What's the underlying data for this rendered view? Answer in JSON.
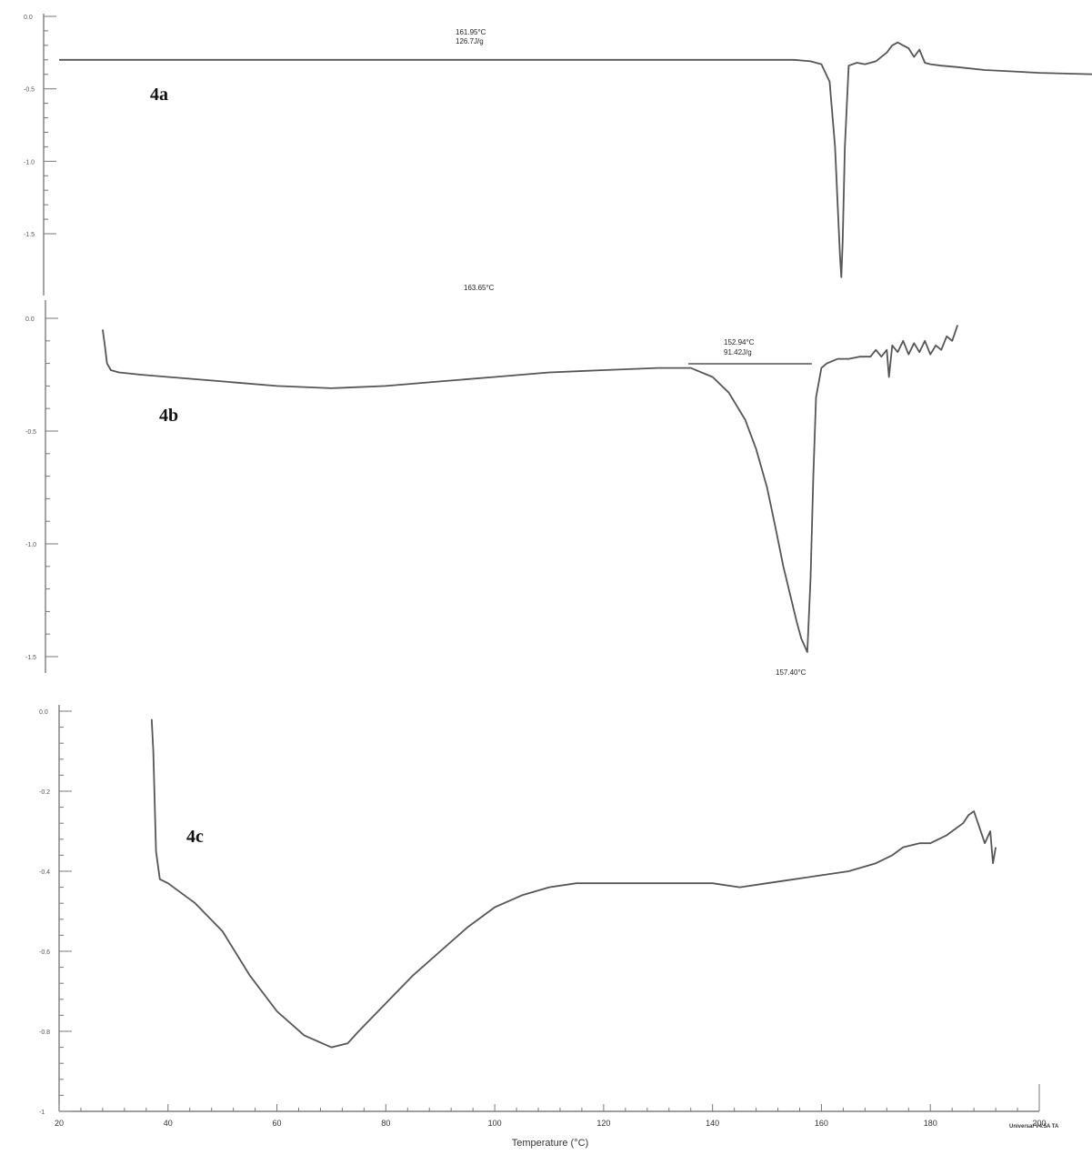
{
  "chart_data": [
    {
      "type": "line",
      "panel_label": "4a",
      "y_tick_labels": [
        "0.0",
        "-0.5",
        "-1.0",
        "-1.5"
      ],
      "ylim": [
        -1.8,
        0.1
      ],
      "annotations": {
        "onset": "161.95°C",
        "enthalpy": "126.7J/g",
        "peak": "163.65°C"
      },
      "series": [
        {
          "x": [
            20,
            60,
            100,
            130,
            135,
            155,
            158,
            160,
            161.5,
            162.5,
            163.1,
            163.4,
            163.65,
            163.9,
            164.3,
            165,
            166.5,
            168,
            170,
            172,
            173,
            174,
            175,
            176,
            177,
            178,
            179,
            180,
            182,
            185,
            190,
            195,
            200,
            210,
            216
          ],
          "y": [
            -0.3,
            -0.3,
            -0.3,
            -0.3,
            -0.3,
            -0.3,
            -0.31,
            -0.33,
            -0.45,
            -0.9,
            -1.4,
            -1.65,
            -1.8,
            -1.55,
            -0.9,
            -0.34,
            -0.32,
            -0.33,
            -0.31,
            -0.25,
            -0.2,
            -0.18,
            -0.2,
            -0.22,
            -0.28,
            -0.23,
            -0.32,
            -0.33,
            -0.34,
            -0.35,
            -0.37,
            -0.38,
            -0.39,
            -0.4,
            -0.41
          ]
        }
      ]
    },
    {
      "type": "line",
      "panel_label": "4b",
      "y_tick_labels": [
        "0.0",
        "-0.5",
        "-1.0",
        "-1.5"
      ],
      "ylim": [
        -1.55,
        0.05
      ],
      "annotations": {
        "onset": "152.94°C",
        "enthalpy": "91.42J/g",
        "peak": "157.40°C"
      },
      "series": [
        {
          "x": [
            28,
            28.4,
            28.8,
            29.5,
            31,
            35,
            40,
            50,
            60,
            70,
            80,
            90,
            100,
            110,
            120,
            130,
            136,
            140,
            143,
            146,
            148,
            150,
            151.5,
            153,
            154.5,
            155.5,
            156.3,
            157.4,
            158,
            158.5,
            159,
            160,
            161,
            163,
            165,
            167,
            169,
            170,
            171,
            172,
            172.4,
            173,
            174,
            175,
            176,
            177,
            178,
            179,
            180,
            181,
            182,
            183,
            184,
            185
          ],
          "y": [
            -0.05,
            -0.12,
            -0.2,
            -0.23,
            -0.24,
            -0.25,
            -0.26,
            -0.28,
            -0.3,
            -0.31,
            -0.3,
            -0.28,
            -0.26,
            -0.24,
            -0.23,
            -0.22,
            -0.22,
            -0.26,
            -0.33,
            -0.45,
            -0.58,
            -0.75,
            -0.92,
            -1.1,
            -1.25,
            -1.35,
            -1.42,
            -1.48,
            -1.15,
            -0.7,
            -0.35,
            -0.22,
            -0.2,
            -0.18,
            -0.18,
            -0.17,
            -0.17,
            -0.14,
            -0.17,
            -0.14,
            -0.26,
            -0.12,
            -0.15,
            -0.1,
            -0.16,
            -0.11,
            -0.15,
            -0.1,
            -0.16,
            -0.12,
            -0.14,
            -0.08,
            -0.1,
            -0.03
          ]
        }
      ]
    },
    {
      "type": "line",
      "panel_label": "4c",
      "y_tick_labels": [
        "0.0",
        "-0.2",
        "-0.4",
        "-0.6",
        "-0.8",
        "-1"
      ],
      "ylim": [
        -1.0,
        0.0
      ],
      "x_tick_labels": [
        "20",
        "40",
        "60",
        "80",
        "100",
        "120",
        "140",
        "160",
        "180",
        "200"
      ],
      "xlim": [
        20,
        200
      ],
      "xlabel": "Temperature (°C)",
      "footer": "Universal V4.5A TA",
      "series": [
        {
          "x": [
            37,
            37.3,
            37.8,
            38.5,
            40,
            45,
            50,
            55,
            60,
            65,
            70,
            73,
            75,
            80,
            85,
            90,
            95,
            100,
            105,
            110,
            115,
            120,
            130,
            140,
            145,
            150,
            155,
            160,
            165,
            170,
            173,
            175,
            178,
            180,
            183,
            186,
            187,
            188,
            189,
            190,
            191,
            191.5,
            192
          ],
          "y": [
            -0.02,
            -0.1,
            -0.35,
            -0.42,
            -0.43,
            -0.48,
            -0.55,
            -0.66,
            -0.75,
            -0.81,
            -0.84,
            -0.83,
            -0.8,
            -0.73,
            -0.66,
            -0.6,
            -0.54,
            -0.49,
            -0.46,
            -0.44,
            -0.43,
            -0.43,
            -0.43,
            -0.43,
            -0.44,
            -0.43,
            -0.42,
            -0.41,
            -0.4,
            -0.38,
            -0.36,
            -0.34,
            -0.33,
            -0.33,
            -0.31,
            -0.28,
            -0.26,
            -0.25,
            -0.29,
            -0.33,
            -0.3,
            -0.38,
            -0.34
          ]
        }
      ]
    }
  ]
}
